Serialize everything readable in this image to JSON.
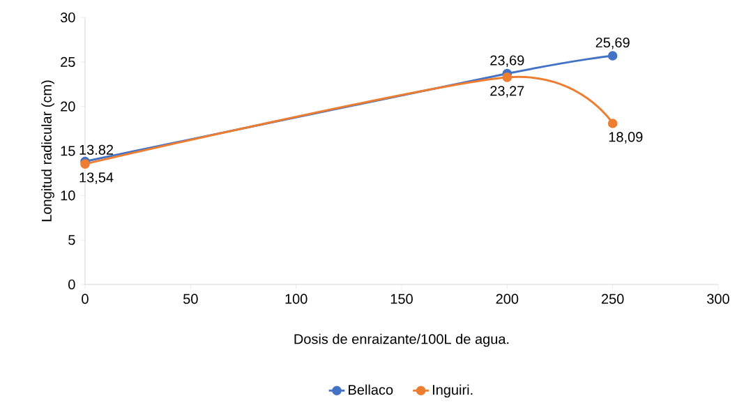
{
  "chart_data": {
    "type": "line",
    "xlabel": "Dosis de enraizante/100L de agua.",
    "ylabel": "Longitud radicular (cm)",
    "x": [
      0,
      200,
      250
    ],
    "series": [
      {
        "name": "Bellaco",
        "color": "#4472c4",
        "values": [
          13.82,
          23.69,
          25.69
        ],
        "value_labels": [
          "13.82",
          "23,69",
          "25,69"
        ]
      },
      {
        "name": "Inguiri.",
        "color": "#ed7d31",
        "values": [
          13.54,
          23.27,
          18.09
        ],
        "value_labels": [
          "13,54",
          "23,27",
          "18,09"
        ]
      }
    ],
    "xlim": [
      0,
      300
    ],
    "xticks": [
      0,
      50,
      100,
      150,
      200,
      250,
      300
    ],
    "ylim": [
      0,
      30
    ],
    "yticks": [
      0,
      5,
      10,
      15,
      20,
      25,
      30
    ],
    "marker": "circle",
    "legend": "bottom",
    "grid": false
  }
}
